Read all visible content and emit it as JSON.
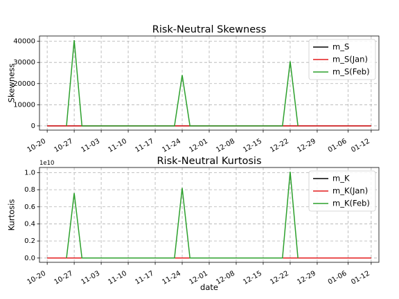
{
  "chart_data": [
    {
      "type": "line",
      "title": "Risk-Neutral Skewness",
      "xlabel": "",
      "ylabel": "Skewness",
      "x_tick_labels": [
        "10-20",
        "10-27",
        "11-03",
        "11-10",
        "11-17",
        "11-24",
        "12-01",
        "12-08",
        "12-15",
        "12-22",
        "12-29",
        "01-06",
        "01-12"
      ],
      "y_tick_labels": [
        "0",
        "10000",
        "20000",
        "30000",
        "40000"
      ],
      "y_ticks": [
        0,
        10000,
        20000,
        30000,
        40000
      ],
      "ylim": [
        -2000,
        42500
      ],
      "xlim": [
        "10-18",
        "01-14"
      ],
      "grid": true,
      "legend_position": "upper right",
      "series": [
        {
          "name": "m_S",
          "color": "#000000",
          "style": "solid",
          "points": [
            [
              "10-20",
              0
            ],
            [
              "01-12",
              0
            ]
          ]
        },
        {
          "name": "m_S(Jan)",
          "color": "#e41a1c",
          "style": "solid",
          "points": [
            [
              "10-20",
              0
            ],
            [
              "01-12",
              0
            ]
          ]
        },
        {
          "name": "m_S(Feb)",
          "color": "#2ca02c",
          "style": "solid",
          "points": [
            [
              "10-25",
              0
            ],
            [
              "10-27",
              40500
            ],
            [
              "10-29",
              0
            ],
            [
              "11-22",
              0
            ],
            [
              "11-24",
              24000
            ],
            [
              "11-26",
              0
            ],
            [
              "12-20",
              0
            ],
            [
              "12-22",
              30500
            ],
            [
              "12-24",
              0
            ]
          ]
        }
      ]
    },
    {
      "type": "line",
      "title": "Risk-Neutral Kurtosis",
      "xlabel": "date",
      "ylabel": "Kurtosis",
      "offset_text": "1e10",
      "x_tick_labels": [
        "10-20",
        "10-27",
        "11-03",
        "11-10",
        "11-17",
        "11-24",
        "12-01",
        "12-08",
        "12-15",
        "12-22",
        "12-29",
        "01-06",
        "01-12"
      ],
      "y_tick_labels": [
        "0.0",
        "0.2",
        "0.4",
        "0.6",
        "0.8",
        "1.0"
      ],
      "y_ticks": [
        0,
        0.2,
        0.4,
        0.6,
        0.8,
        1.0
      ],
      "ylim": [
        -0.05,
        1.06
      ],
      "xlim": [
        "10-18",
        "01-14"
      ],
      "grid": true,
      "legend_position": "upper right",
      "series": [
        {
          "name": "m_K",
          "color": "#000000",
          "style": "solid",
          "points": [
            [
              "10-20",
              0
            ],
            [
              "01-12",
              0
            ]
          ]
        },
        {
          "name": "m_K(Jan)",
          "color": "#e41a1c",
          "style": "solid",
          "points": [
            [
              "10-20",
              0
            ],
            [
              "01-12",
              0
            ]
          ]
        },
        {
          "name": "m_K(Feb)",
          "color": "#2ca02c",
          "style": "solid",
          "points": [
            [
              "10-25",
              0
            ],
            [
              "10-27",
              0.76
            ],
            [
              "10-29",
              0
            ],
            [
              "11-22",
              0
            ],
            [
              "11-24",
              0.82
            ],
            [
              "11-26",
              0
            ],
            [
              "12-20",
              0
            ],
            [
              "12-22",
              1.01
            ],
            [
              "12-24",
              0
            ]
          ]
        }
      ]
    }
  ]
}
